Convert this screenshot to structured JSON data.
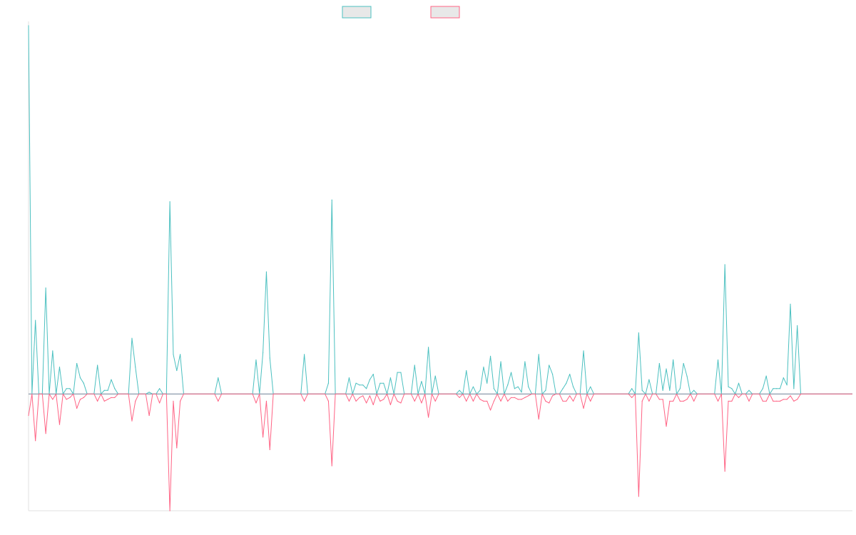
{
  "chart_data": {
    "type": "line",
    "title": "",
    "xlabel": "",
    "ylabel": "",
    "ylim": [
      -6.5,
      20.5
    ],
    "x_count": 240,
    "legend": {
      "placement": "top-center"
    },
    "grid": false,
    "series": [
      {
        "color": "#4bc0c0",
        "fill": "#e8e8e8",
        "points": [
          [
            0,
            20.5
          ],
          [
            2,
            4.1
          ],
          [
            5,
            5.9
          ],
          [
            7,
            2.4
          ],
          [
            9,
            1.5
          ],
          [
            11,
            0.3
          ],
          [
            12,
            0.3
          ],
          [
            14,
            1.7
          ],
          [
            15,
            0.9
          ],
          [
            16,
            0.6
          ],
          [
            20,
            1.6
          ],
          [
            22,
            0.2
          ],
          [
            23,
            0.2
          ],
          [
            24,
            0.8
          ],
          [
            25,
            0.3
          ],
          [
            30,
            3.1
          ],
          [
            31,
            1.5
          ],
          [
            35,
            0.1
          ],
          [
            38,
            0.3
          ],
          [
            41,
            10.7
          ],
          [
            42,
            2.2
          ],
          [
            43,
            1.3
          ],
          [
            44,
            2.2
          ],
          [
            55,
            0.9
          ],
          [
            66,
            1.9
          ],
          [
            68,
            2.3
          ],
          [
            69,
            6.8
          ],
          [
            70,
            2.0
          ],
          [
            80,
            2.2
          ],
          [
            87,
            0.6
          ],
          [
            88,
            10.8
          ],
          [
            93,
            0.9
          ],
          [
            95,
            0.6
          ],
          [
            96,
            0.5
          ],
          [
            97,
            0.5
          ],
          [
            98,
            0.3
          ],
          [
            99,
            0.8
          ],
          [
            100,
            1.1
          ],
          [
            102,
            0.6
          ],
          [
            103,
            0.6
          ],
          [
            105,
            0.9
          ],
          [
            107,
            1.2
          ],
          [
            108,
            1.2
          ],
          [
            112,
            1.6
          ],
          [
            114,
            0.7
          ],
          [
            116,
            2.6
          ],
          [
            118,
            1.0
          ],
          [
            125,
            0.2
          ],
          [
            127,
            1.3
          ],
          [
            129,
            0.4
          ],
          [
            131,
            0.2
          ],
          [
            132,
            1.5
          ],
          [
            133,
            0.6
          ],
          [
            134,
            2.1
          ],
          [
            135,
            0.3
          ],
          [
            137,
            1.8
          ],
          [
            139,
            0.5
          ],
          [
            140,
            1.2
          ],
          [
            141,
            0.3
          ],
          [
            142,
            0.4
          ],
          [
            143,
            0.1
          ],
          [
            144,
            1.8
          ],
          [
            145,
            0.4
          ],
          [
            148,
            2.2
          ],
          [
            150,
            0.2
          ],
          [
            151,
            1.6
          ],
          [
            152,
            1.1
          ],
          [
            155,
            0.3
          ],
          [
            156,
            0.6
          ],
          [
            157,
            1.1
          ],
          [
            158,
            0.4
          ],
          [
            161,
            2.4
          ],
          [
            163,
            0.4
          ],
          [
            175,
            0.3
          ],
          [
            177,
            3.4
          ],
          [
            178,
            0.2
          ],
          [
            180,
            0.8
          ],
          [
            183,
            1.7
          ],
          [
            184,
            0.2
          ],
          [
            185,
            1.4
          ],
          [
            186,
            0.2
          ],
          [
            187,
            1.9
          ],
          [
            189,
            0.3
          ],
          [
            190,
            1.7
          ],
          [
            191,
            1.0
          ],
          [
            193,
            0.2
          ],
          [
            200,
            1.9
          ],
          [
            202,
            7.2
          ],
          [
            203,
            0.4
          ],
          [
            204,
            0.3
          ],
          [
            206,
            0.6
          ],
          [
            209,
            0.2
          ],
          [
            213,
            0.3
          ],
          [
            214,
            1.0
          ],
          [
            216,
            0.3
          ],
          [
            217,
            0.3
          ],
          [
            218,
            0.3
          ],
          [
            219,
            0.9
          ],
          [
            220,
            0.5
          ],
          [
            221,
            5.0
          ],
          [
            222,
            0.3
          ],
          [
            223,
            3.8
          ]
        ]
      },
      {
        "color": "#ff6384",
        "fill": "#e8e8e8",
        "points": [
          [
            0,
            -1.2
          ],
          [
            2,
            -2.6
          ],
          [
            5,
            -2.2
          ],
          [
            7,
            -0.3
          ],
          [
            9,
            -1.7
          ],
          [
            11,
            -0.3
          ],
          [
            12,
            -0.2
          ],
          [
            14,
            -0.8
          ],
          [
            15,
            -0.3
          ],
          [
            16,
            -0.2
          ],
          [
            20,
            -0.4
          ],
          [
            22,
            -0.4
          ],
          [
            23,
            -0.3
          ],
          [
            24,
            -0.2
          ],
          [
            25,
            -0.2
          ],
          [
            30,
            -1.5
          ],
          [
            31,
            -0.4
          ],
          [
            35,
            -1.2
          ],
          [
            38,
            -0.5
          ],
          [
            41,
            -6.5
          ],
          [
            42,
            -0.4
          ],
          [
            43,
            -3.0
          ],
          [
            44,
            -0.4
          ],
          [
            55,
            -0.4
          ],
          [
            66,
            -0.5
          ],
          [
            68,
            -2.4
          ],
          [
            69,
            -0.4
          ],
          [
            70,
            -3.1
          ],
          [
            80,
            -0.4
          ],
          [
            87,
            -0.4
          ],
          [
            88,
            -4.0
          ],
          [
            93,
            -0.4
          ],
          [
            95,
            -0.4
          ],
          [
            96,
            -0.2
          ],
          [
            97,
            -0.1
          ],
          [
            98,
            -0.5
          ],
          [
            99,
            -0.1
          ],
          [
            100,
            -0.6
          ],
          [
            102,
            -0.4
          ],
          [
            103,
            -0.3
          ],
          [
            105,
            -0.6
          ],
          [
            107,
            -0.4
          ],
          [
            108,
            -0.5
          ],
          [
            112,
            -0.4
          ],
          [
            114,
            -0.5
          ],
          [
            116,
            -1.3
          ],
          [
            118,
            -0.4
          ],
          [
            125,
            -0.2
          ],
          [
            127,
            -0.4
          ],
          [
            129,
            -0.4
          ],
          [
            131,
            -0.3
          ],
          [
            132,
            -0.4
          ],
          [
            133,
            -0.4
          ],
          [
            134,
            -0.9
          ],
          [
            135,
            -0.4
          ],
          [
            137,
            -0.4
          ],
          [
            139,
            -0.4
          ],
          [
            140,
            -0.2
          ],
          [
            141,
            -0.2
          ],
          [
            142,
            -0.3
          ],
          [
            143,
            -0.3
          ],
          [
            144,
            -0.2
          ],
          [
            145,
            -0.1
          ],
          [
            148,
            -1.4
          ],
          [
            150,
            -0.4
          ],
          [
            151,
            -0.5
          ],
          [
            152,
            -0.1
          ],
          [
            155,
            -0.4
          ],
          [
            156,
            -0.4
          ],
          [
            157,
            -0.1
          ],
          [
            158,
            -0.4
          ],
          [
            161,
            -0.8
          ],
          [
            163,
            -0.4
          ],
          [
            175,
            -0.2
          ],
          [
            177,
            -5.7
          ],
          [
            178,
            -0.4
          ],
          [
            180,
            -0.4
          ],
          [
            183,
            -0.3
          ],
          [
            184,
            -0.3
          ],
          [
            185,
            -1.8
          ],
          [
            186,
            -0.4
          ],
          [
            187,
            -0.4
          ],
          [
            189,
            -0.4
          ],
          [
            190,
            -0.4
          ],
          [
            191,
            -0.3
          ],
          [
            193,
            -0.4
          ],
          [
            200,
            -0.4
          ],
          [
            202,
            -4.3
          ],
          [
            203,
            -0.4
          ],
          [
            204,
            -0.4
          ],
          [
            206,
            -0.2
          ],
          [
            209,
            -0.4
          ],
          [
            213,
            -0.4
          ],
          [
            214,
            -0.4
          ],
          [
            216,
            -0.4
          ],
          [
            217,
            -0.4
          ],
          [
            218,
            -0.4
          ],
          [
            219,
            -0.3
          ],
          [
            220,
            -0.3
          ],
          [
            221,
            -0.1
          ],
          [
            222,
            -0.4
          ],
          [
            223,
            -0.3
          ]
        ]
      }
    ]
  }
}
